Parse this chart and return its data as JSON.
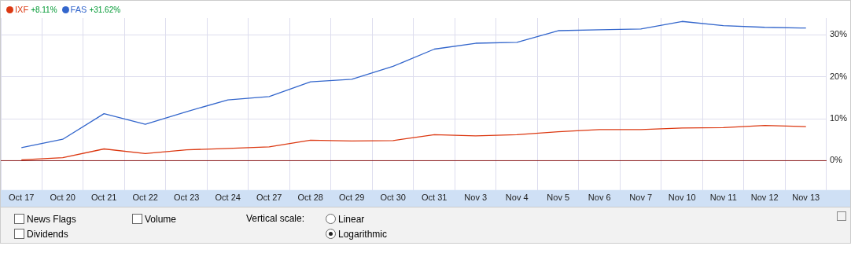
{
  "chart_data": {
    "type": "line",
    "categories": [
      "Oct 17",
      "Oct 20",
      "Oct 21",
      "Oct 22",
      "Oct 23",
      "Oct 24",
      "Oct 27",
      "Oct 28",
      "Oct 29",
      "Oct 30",
      "Oct 31",
      "Nov 3",
      "Nov 4",
      "Nov 5",
      "Nov 6",
      "Nov 7",
      "Nov 10",
      "Nov 11",
      "Nov 12",
      "Nov 13"
    ],
    "series": [
      {
        "name": "IXF",
        "color": "#dc3912",
        "values": [
          0.2,
          0.7,
          2.8,
          1.7,
          2.6,
          2.9,
          3.3,
          4.9,
          4.7,
          4.8,
          6.2,
          5.9,
          6.2,
          6.9,
          7.4,
          7.4,
          7.8,
          7.9,
          8.4,
          8.11
        ]
      },
      {
        "name": "FAS",
        "color": "#3366cc",
        "values": [
          3.1,
          5.1,
          11.2,
          8.7,
          11.7,
          14.5,
          15.3,
          18.8,
          19.4,
          22.5,
          26.6,
          28.0,
          28.2,
          31.0,
          31.2,
          31.4,
          33.2,
          32.2,
          31.8,
          31.62
        ]
      }
    ],
    "ylim": [
      -7,
      34
    ],
    "yticks": [
      {
        "value": 0,
        "label": "0%"
      },
      {
        "value": 10,
        "label": "10%"
      },
      {
        "value": 20,
        "label": "20%"
      },
      {
        "value": 30,
        "label": "30%"
      }
    ],
    "ref_lines": [
      {
        "axis": "y",
        "value": 0,
        "color": "#8b1a1a"
      }
    ],
    "grid": true,
    "legend": "top left",
    "marker": "none",
    "annotations": [
      "+8.11%",
      "+31.62%",
      "News Flags",
      "Volume",
      "Dividends",
      "Vertical scale:",
      "Linear",
      "Logarithmic"
    ]
  }
}
